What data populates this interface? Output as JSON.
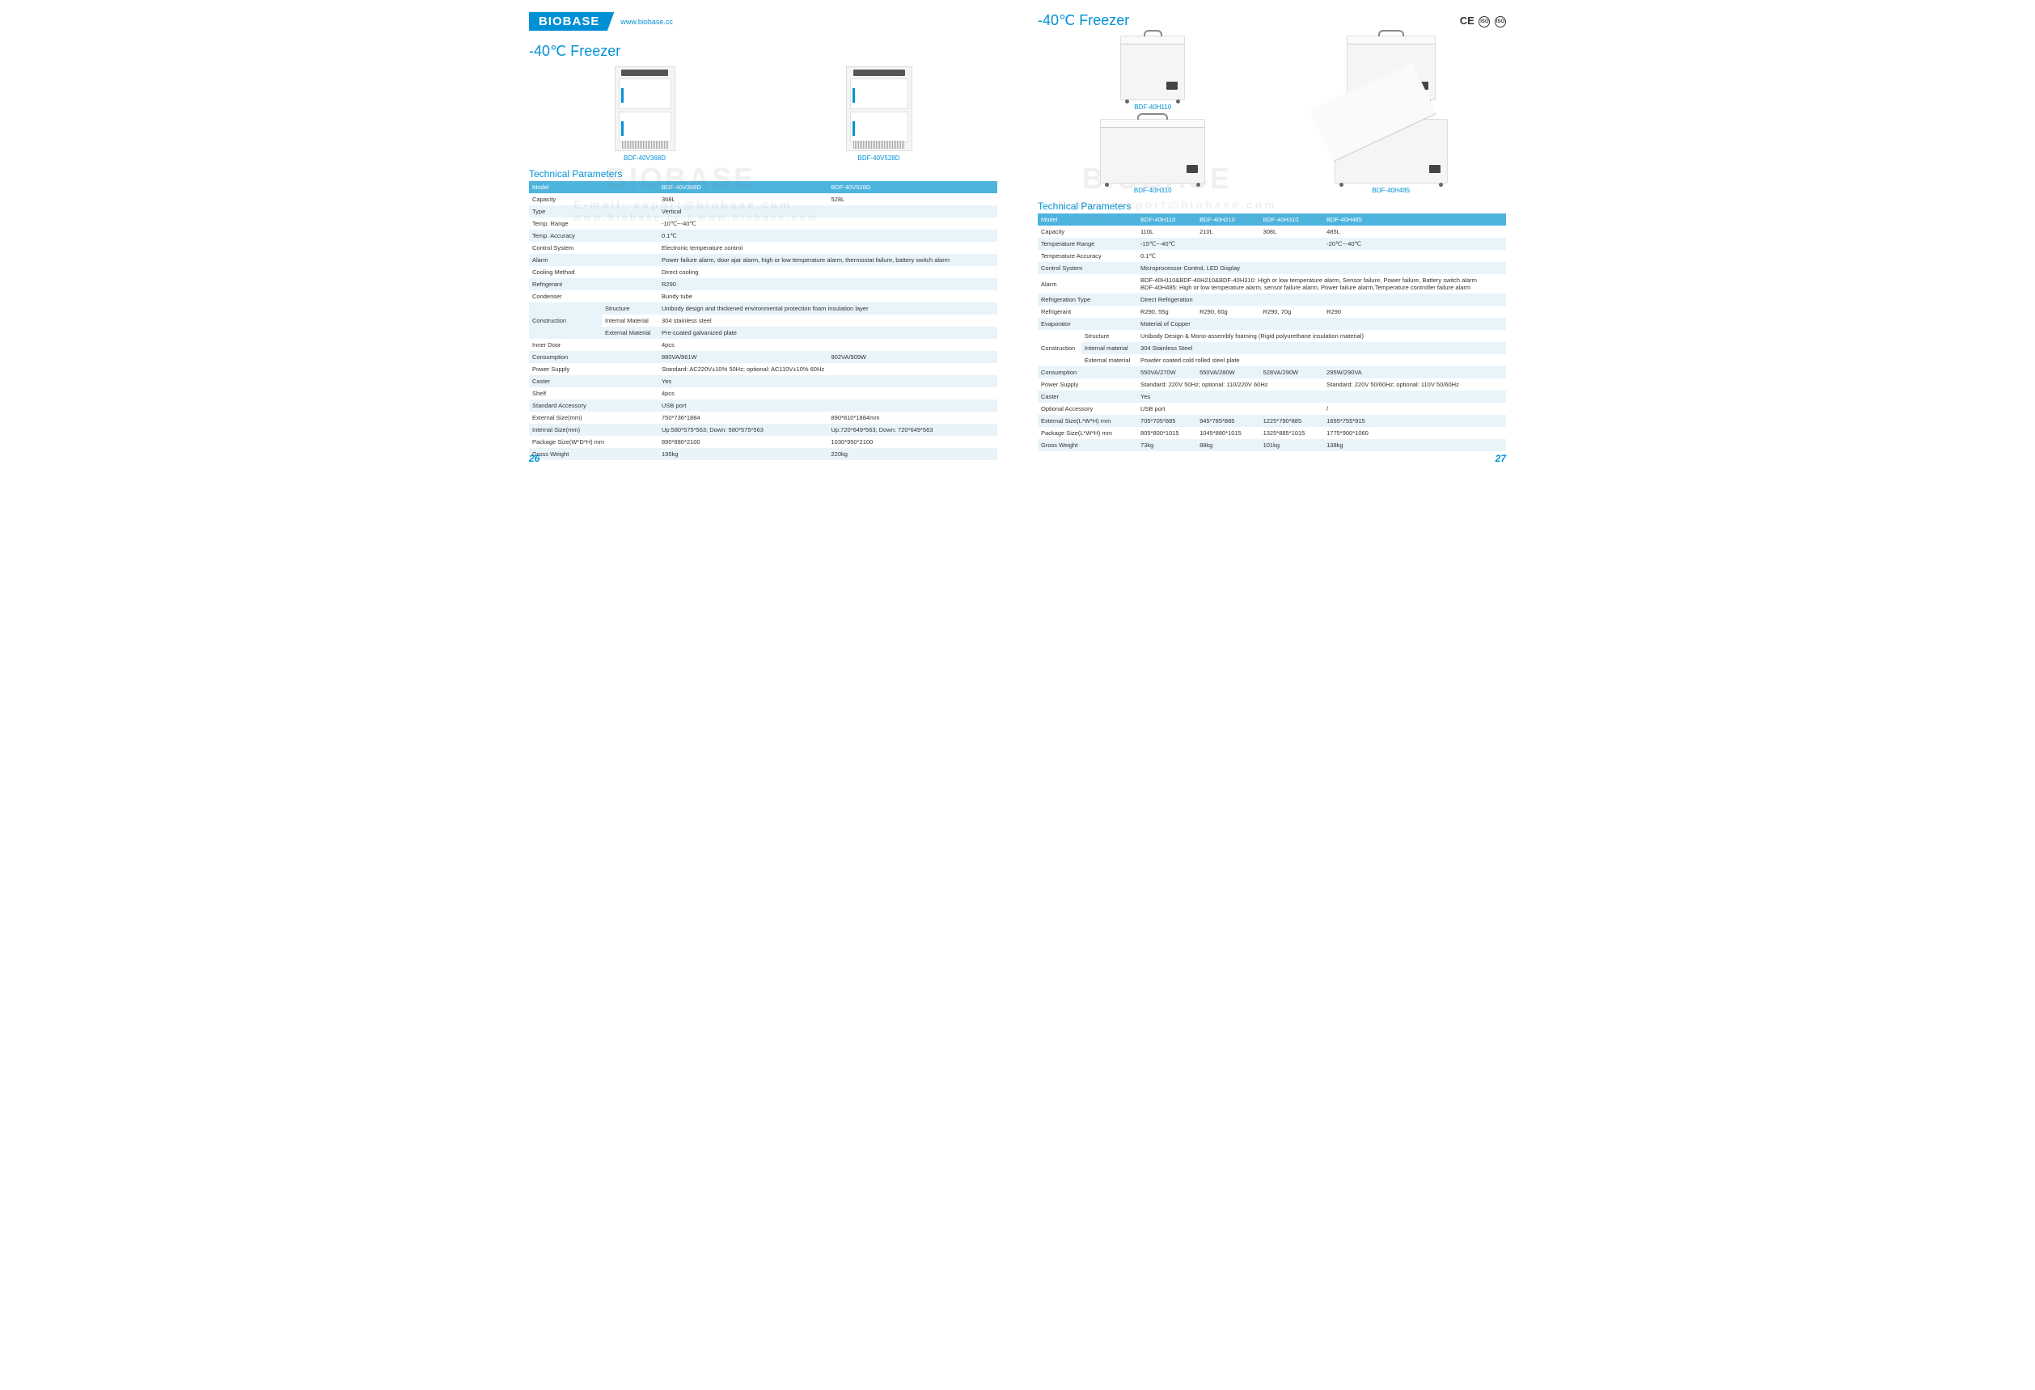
{
  "header": {
    "brand": "BIOBASE",
    "url": "www.biobase.cc",
    "ce": "CE"
  },
  "watermark": {
    "brand": "BIOBASE",
    "email": "E-mail: export@biobase.com",
    "urls": "www.biobase.cc / www.biobase.com"
  },
  "left": {
    "title": "-40℃ Freezer",
    "products": [
      {
        "label": "BDF-40V368D"
      },
      {
        "label": "BDF-40V528D"
      }
    ],
    "section": "Technical Parameters",
    "table": {
      "header_bg": "#4db4de",
      "odd_bg": "#e8f4fa",
      "even_bg": "#ffffff",
      "rows": [
        {
          "type": "hdr",
          "cells": [
            "Model",
            "BDF-40V368D",
            "BDF-40V528D"
          ]
        },
        {
          "type": "even",
          "cells": [
            "Capacity",
            "368L",
            "528L"
          ]
        },
        {
          "type": "odd",
          "cells": [
            "Type",
            "Vertical",
            ""
          ],
          "span": true
        },
        {
          "type": "even",
          "cells": [
            "Temp. Range",
            "-10℃~-40℃",
            ""
          ],
          "span": true
        },
        {
          "type": "odd",
          "cells": [
            "Temp. Accuracy",
            "0.1℃",
            ""
          ],
          "span": true
        },
        {
          "type": "even",
          "cells": [
            "Control System",
            "Electronic temperature control",
            ""
          ],
          "span": true
        },
        {
          "type": "odd",
          "cells": [
            "Alarm",
            "Power failure alarm, door ajar alarm, high or low temperature alarm, thermostat failure, battery switch alarm",
            ""
          ],
          "span": true
        },
        {
          "type": "even",
          "cells": [
            "Cooling Method",
            "Direct cooling",
            ""
          ],
          "span": true
        },
        {
          "type": "odd",
          "cells": [
            "Refrigerant",
            "R290",
            ""
          ],
          "span": true
        },
        {
          "type": "even",
          "cells": [
            "Condenser",
            "Bundy tube",
            ""
          ],
          "span": true
        },
        {
          "type": "odd",
          "group": "Construction",
          "sub": "Structure",
          "val": "Unibody design and thickened environmental protection foam insulation layer"
        },
        {
          "type": "even",
          "sub": "Internal Material",
          "val": "304 stainless steel"
        },
        {
          "type": "odd",
          "sub": "External Material",
          "val": "Pre-coated galvanized plate"
        },
        {
          "type": "even",
          "cells": [
            "Inner Door",
            "4pcs",
            ""
          ],
          "span": true
        },
        {
          "type": "odd",
          "cells": [
            "Consumption",
            "880VA/861W",
            "902VA/909W"
          ]
        },
        {
          "type": "even",
          "cells": [
            "Power Supply",
            "Standard: AC220V±10% 50Hz; optional: AC110V±10% 60Hz",
            ""
          ],
          "span": true
        },
        {
          "type": "odd",
          "cells": [
            "Caster",
            "Yes",
            ""
          ],
          "span": true
        },
        {
          "type": "even",
          "cells": [
            "Shelf",
            "4pcs",
            ""
          ],
          "span": true
        },
        {
          "type": "odd",
          "cells": [
            "Standard Accessory",
            "USB port",
            ""
          ],
          "span": true
        },
        {
          "type": "even",
          "cells": [
            "External Size(mm)",
            "750*736*1884",
            "890*810*1884mm"
          ]
        },
        {
          "type": "odd",
          "cells": [
            "Internal Size(mm)",
            "Up:580*575*563; Down: 580*575*563",
            "Up:720*649*563; Down: 720*649*563"
          ]
        },
        {
          "type": "even",
          "cells": [
            "Package Size(W*D*H) mm",
            "890*880*2100",
            "1030*950*2100"
          ]
        },
        {
          "type": "odd",
          "cells": [
            "Gross Weight",
            "195kg",
            "220kg"
          ]
        }
      ]
    },
    "page": "26"
  },
  "right": {
    "title": "-40℃ Freezer",
    "products": [
      {
        "label": "BDF-40H110"
      },
      {
        "label": "BDF-40H210"
      },
      {
        "label": "BDF-40H310"
      },
      {
        "label": "BDF-40H485"
      }
    ],
    "section": "Technical Parameters",
    "table": {
      "rows": [
        {
          "type": "hdr",
          "cells": [
            "Model",
            "BDF-40H110",
            "BDF-40H210",
            "BDF-40H310",
            "BDF-40H485"
          ]
        },
        {
          "type": "even",
          "cells": [
            "Capacity",
            "110L",
            "210L",
            "308L",
            "485L"
          ]
        },
        {
          "type": "odd",
          "cells": [
            "Temperature Range",
            "-15℃~-40℃",
            "",
            "",
            "-20℃~-40℃"
          ],
          "spanMid": 3
        },
        {
          "type": "even",
          "cells": [
            "Temperature Accuracy",
            "0.1℃"
          ],
          "full": true
        },
        {
          "type": "odd",
          "cells": [
            "Control System",
            "Microprocessor Control, LED Display"
          ],
          "full": true
        },
        {
          "type": "even",
          "cells": [
            "Alarm",
            "BDF-40H110&BDF-40H210&BDF-40H310: High or low temperature alarm, Sensor failure, Power failure, Battery switch alarm\nBDF-40H485: High or low temperature alarm, sensor failure alarm, Power failure alarm,Temperature controller failure alarm"
          ],
          "full": true
        },
        {
          "type": "odd",
          "cells": [
            "Refrigeration Type",
            "Direct Refrigeration"
          ],
          "full": true
        },
        {
          "type": "even",
          "cells": [
            "Refrigerant",
            "R290, 55g",
            "R290, 60g",
            "R290, 70g",
            "R290"
          ]
        },
        {
          "type": "odd",
          "cells": [
            "Evaporator",
            "Material of Copper"
          ],
          "full": true
        },
        {
          "type": "even",
          "group": "Construction",
          "sub": "Structure",
          "val": "Unibody Design & Mono-assembly foaming (Rigid polyurethane insulation material)"
        },
        {
          "type": "odd",
          "sub": "Internal material",
          "val": "304 Stainless Steel"
        },
        {
          "type": "even",
          "sub": "External material",
          "val": "Powder coated cold rolled steel plate"
        },
        {
          "type": "odd",
          "cells": [
            "Consumption",
            "550VA/270W",
            "550VA/280W",
            "528VA/290W",
            "295W/290VA"
          ]
        },
        {
          "type": "even",
          "cells": [
            "Power Supply",
            "Standard: 220V 50Hz; optional: 110/220V 60Hz",
            "",
            "",
            "Standard: 220V 50/60Hz; optional: 110V 50/60Hz"
          ],
          "spanMid": 3
        },
        {
          "type": "odd",
          "cells": [
            "Caster",
            "Yes"
          ],
          "full": true
        },
        {
          "type": "even",
          "cells": [
            "Optional Accessory",
            "USB port",
            "",
            "",
            "/"
          ],
          "spanMid": 3
        },
        {
          "type": "odd",
          "cells": [
            "External Size(L*W*H) mm",
            "705*705*885",
            "945*785*885",
            "1225*790*885",
            "1655*755*915"
          ]
        },
        {
          "type": "even",
          "cells": [
            "Package Size(L*W*H) mm",
            "805*800*1015",
            "1045*880*1015",
            "1325*885*1015",
            "1775*900*1060"
          ]
        },
        {
          "type": "odd",
          "cells": [
            "Gross Weight",
            "73kg",
            "88kg",
            "101kg",
            "138kg"
          ]
        }
      ]
    },
    "page": "27"
  }
}
